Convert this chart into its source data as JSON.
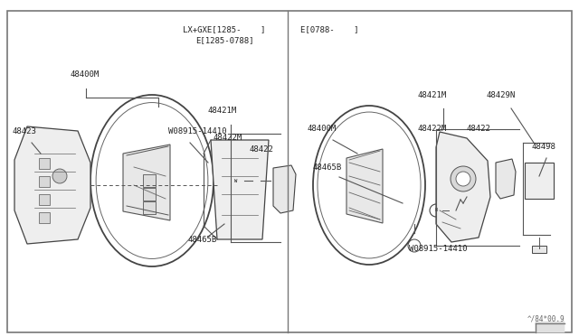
{
  "bg_color": "#ffffff",
  "line_color": "#333333",
  "text_color": "#222222",
  "title_left_1": "LX+GXE[1285-    ]",
  "title_left_2": "E[1285-0788]",
  "title_right": "E[0788-    ]",
  "watermark": "^/84*00.9",
  "fig_w": 6.4,
  "fig_h": 3.72,
  "dpi": 100
}
